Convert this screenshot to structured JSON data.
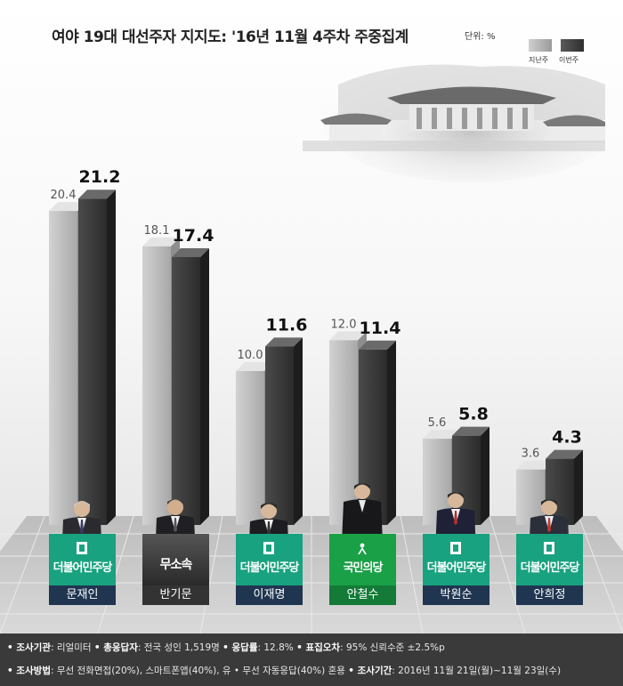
{
  "title": "여야 19대 대선주자 지지도: '16년 11월 4주차 주중집계",
  "unit": "단위: %",
  "legend": {
    "previous": "지난주",
    "current": "이번주",
    "previous_color": "#b4b4b4",
    "current_color": "#3c3c3c"
  },
  "chart_data": {
    "type": "bar",
    "title": "여야 19대 대선주자 지지도: '16년 11월 4주차 주중집계",
    "categories": [
      "문재인",
      "반기문",
      "이재명",
      "안철수",
      "박원순",
      "안희정"
    ],
    "series": [
      {
        "name": "지난주",
        "values": [
          20.4,
          18.1,
          10.0,
          12.0,
          5.6,
          3.6
        ],
        "labels": [
          "20.4",
          "18.1",
          "10.0",
          "12.0",
          "5.6",
          "3.6"
        ]
      },
      {
        "name": "이번주",
        "values": [
          21.2,
          17.4,
          11.6,
          11.4,
          5.8,
          4.3
        ],
        "labels": [
          "21.2",
          "17.4",
          "11.6",
          "11.4",
          "5.8",
          "4.3"
        ]
      }
    ],
    "ylim": [
      0,
      25
    ],
    "grid": false,
    "legend_position": "top-right"
  },
  "candidates": [
    {
      "name": "문재인",
      "party": "더불어민주당",
      "party_color": "#18a27f",
      "name_bg": "#1f3550"
    },
    {
      "name": "반기문",
      "party": "무소속",
      "party_color": "#3b3b3b",
      "name_bg": "#333333"
    },
    {
      "name": "이재명",
      "party": "더불어민주당",
      "party_color": "#18a27f",
      "name_bg": "#1f3550"
    },
    {
      "name": "안철수",
      "party": "국민의당",
      "party_color": "#1aa046",
      "name_bg": "#137a37"
    },
    {
      "name": "박원순",
      "party": "더불어민주당",
      "party_color": "#18a27f",
      "name_bg": "#1f3550"
    },
    {
      "name": "안희정",
      "party": "더불어민주당",
      "party_color": "#18a27f",
      "name_bg": "#1f3550"
    }
  ],
  "footer": {
    "k1": "• 조사기관",
    "v1": ": 리얼미터 ",
    "k2": "• 총응답자",
    "v2": ": 전국 성인 1,519명 ",
    "k3": "• 응답률",
    "v3": ": 12.8% ",
    "k4": "• 표집오차",
    "v4": ": 95% 신뢰수준 ±2.5%p",
    "k5": "• 조사방법",
    "v5": ": 무선 전화면접(20%), 스마트폰앱(40%), 유 • 무선 자동응답(40%) 혼용 ",
    "k6": "• 조사기간",
    "v6": ": 2016년 11월 21일(월)~11월 23일(수)"
  }
}
